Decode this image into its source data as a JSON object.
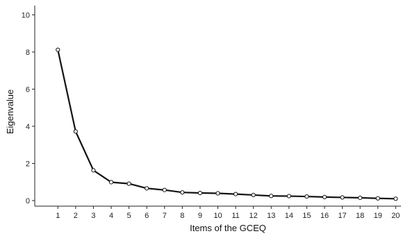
{
  "chart_data": {
    "type": "line",
    "xlabel": "Items of the GCEQ",
    "ylabel": "Eigenvalue",
    "x": [
      1,
      2,
      3,
      4,
      5,
      6,
      7,
      8,
      9,
      10,
      11,
      12,
      13,
      14,
      15,
      16,
      17,
      18,
      19,
      20
    ],
    "series": [
      {
        "values": [
          8.12,
          3.72,
          1.63,
          0.99,
          0.91,
          0.66,
          0.57,
          0.44,
          0.41,
          0.39,
          0.35,
          0.3,
          0.25,
          0.24,
          0.22,
          0.19,
          0.17,
          0.15,
          0.12,
          0.1
        ]
      }
    ],
    "ylim": [
      -0.3,
      10.5
    ],
    "yticks": [
      0,
      2,
      4,
      6,
      8,
      10
    ],
    "xlim": [
      -0.3,
      20.3
    ],
    "grid": false,
    "colors": {
      "line": "#111111",
      "marker_fill": "#ffffff"
    }
  }
}
